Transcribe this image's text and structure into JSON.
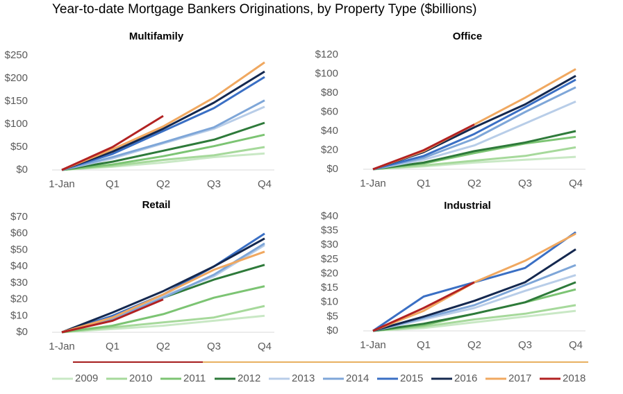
{
  "title": "Year-to-date Mortgage Bankers Originations, by Property Type ($billions)",
  "legend": [
    {
      "name": "2009",
      "color": "#c9e8c5"
    },
    {
      "name": "2010",
      "color": "#a6d99b"
    },
    {
      "name": "2011",
      "color": "#7cc473"
    },
    {
      "name": "2012",
      "color": "#2e7a3a"
    },
    {
      "name": "2013",
      "color": "#b8cde8"
    },
    {
      "name": "2014",
      "color": "#7ea6d8"
    },
    {
      "name": "2015",
      "color": "#3a6fc4"
    },
    {
      "name": "2016",
      "color": "#14284f"
    },
    {
      "name": "2017",
      "color": "#f0a860"
    },
    {
      "name": "2018",
      "color": "#b22222"
    }
  ],
  "chart_data": [
    {
      "type": "line",
      "title": "Multifamily",
      "categories": [
        "1-Jan",
        "Q1",
        "Q2",
        "Q3",
        "Q4"
      ],
      "ylim": [
        0,
        250
      ],
      "yticks": [
        {
          "value": 0,
          "label": "$0"
        },
        {
          "value": 50,
          "label": "$50"
        },
        {
          "value": 100,
          "label": "$100"
        },
        {
          "value": 150,
          "label": "$150"
        },
        {
          "value": 200,
          "label": "$200"
        },
        {
          "value": 250,
          "label": "$250"
        }
      ],
      "series": [
        {
          "values": [
            0,
            7,
            16,
            28,
            36
          ]
        },
        {
          "values": [
            0,
            9,
            22,
            32,
            50
          ]
        },
        {
          "values": [
            0,
            12,
            30,
            52,
            77
          ]
        },
        {
          "values": [
            0,
            18,
            42,
            66,
            103
          ]
        },
        {
          "values": [
            0,
            25,
            58,
            90,
            138
          ]
        },
        {
          "values": [
            0,
            28,
            60,
            93,
            152
          ]
        },
        {
          "values": [
            0,
            35,
            85,
            135,
            203
          ]
        },
        {
          "values": [
            0,
            40,
            90,
            147,
            215
          ]
        },
        {
          "values": [
            0,
            45,
            95,
            158,
            235
          ]
        },
        {
          "values": [
            0,
            50,
            118,
            null,
            null
          ]
        }
      ]
    },
    {
      "type": "line",
      "title": "Office",
      "categories": [
        "1-Jan",
        "Q1",
        "Q2",
        "Q3",
        "Q4"
      ],
      "ylim": [
        0,
        120
      ],
      "yticks": [
        {
          "value": 0,
          "label": "$0"
        },
        {
          "value": 20,
          "label": "$20"
        },
        {
          "value": 40,
          "label": "$40"
        },
        {
          "value": 60,
          "label": "$60"
        },
        {
          "value": 80,
          "label": "$80"
        },
        {
          "value": 100,
          "label": "$100"
        },
        {
          "value": 120,
          "label": "$120"
        }
      ],
      "series": [
        {
          "values": [
            0,
            3,
            7,
            10,
            13
          ]
        },
        {
          "values": [
            0,
            4,
            9,
            14,
            23
          ]
        },
        {
          "values": [
            0,
            6,
            17,
            27,
            34
          ]
        },
        {
          "values": [
            0,
            7,
            19,
            28,
            40
          ]
        },
        {
          "values": [
            0,
            10,
            25,
            48,
            71
          ]
        },
        {
          "values": [
            0,
            12,
            32,
            60,
            86
          ]
        },
        {
          "values": [
            0,
            14,
            37,
            65,
            94
          ]
        },
        {
          "values": [
            0,
            18,
            44,
            68,
            98
          ]
        },
        {
          "values": [
            0,
            19,
            47,
            75,
            105
          ]
        },
        {
          "values": [
            0,
            20,
            47,
            null,
            null
          ]
        }
      ]
    },
    {
      "type": "line",
      "title": "Retail",
      "categories": [
        "1-Jan",
        "Q1",
        "Q2",
        "Q3",
        "Q4"
      ],
      "ylim": [
        0,
        70
      ],
      "yticks": [
        {
          "value": 0,
          "label": "$0"
        },
        {
          "value": 10,
          "label": "$10"
        },
        {
          "value": 20,
          "label": "$20"
        },
        {
          "value": 30,
          "label": "$30"
        },
        {
          "value": 40,
          "label": "$40"
        },
        {
          "value": 50,
          "label": "$50"
        },
        {
          "value": 60,
          "label": "$60"
        },
        {
          "value": 70,
          "label": "$70"
        }
      ],
      "series": [
        {
          "values": [
            0,
            2,
            4,
            7,
            10
          ]
        },
        {
          "values": [
            0,
            3,
            6,
            9,
            16
          ]
        },
        {
          "values": [
            0,
            4,
            11,
            21,
            28
          ]
        },
        {
          "values": [
            0,
            9,
            21,
            32,
            41
          ]
        },
        {
          "values": [
            0,
            9,
            22,
            34,
            53
          ]
        },
        {
          "values": [
            0,
            8,
            21,
            35,
            54
          ]
        },
        {
          "values": [
            0,
            10,
            23,
            40,
            60
          ]
        },
        {
          "values": [
            0,
            12,
            25,
            40,
            57
          ]
        },
        {
          "values": [
            0,
            9,
            23,
            38,
            49
          ]
        },
        {
          "values": [
            0,
            7,
            20,
            null,
            null
          ]
        }
      ]
    },
    {
      "type": "line",
      "title": "Industrial",
      "categories": [
        "1-Jan",
        "Q1",
        "Q2",
        "Q3",
        "Q4"
      ],
      "ylim": [
        0,
        40
      ],
      "yticks": [
        {
          "value": 0,
          "label": "$0"
        },
        {
          "value": 5,
          "label": "$5"
        },
        {
          "value": 10,
          "label": "$10"
        },
        {
          "value": 15,
          "label": "$15"
        },
        {
          "value": 20,
          "label": "$20"
        },
        {
          "value": 25,
          "label": "$25"
        },
        {
          "value": 30,
          "label": "$30"
        },
        {
          "value": 35,
          "label": "$35"
        },
        {
          "value": 40,
          "label": "$40"
        }
      ],
      "series": [
        {
          "values": [
            0,
            1,
            3,
            5,
            7
          ]
        },
        {
          "values": [
            0,
            1.5,
            4,
            6,
            9
          ]
        },
        {
          "values": [
            0,
            2,
            6,
            10,
            14.5
          ]
        },
        {
          "values": [
            0,
            2.5,
            6,
            10,
            17
          ]
        },
        {
          "values": [
            0,
            4,
            8,
            14,
            19.5
          ]
        },
        {
          "values": [
            0,
            4.5,
            9,
            16,
            23
          ]
        },
        {
          "values": [
            0,
            12,
            17,
            22,
            34.5
          ]
        },
        {
          "values": [
            0,
            5,
            10.5,
            17,
            28.5
          ]
        },
        {
          "values": [
            0,
            7,
            17,
            24.5,
            34
          ]
        },
        {
          "values": [
            0,
            8,
            17,
            null,
            null
          ]
        }
      ]
    }
  ]
}
